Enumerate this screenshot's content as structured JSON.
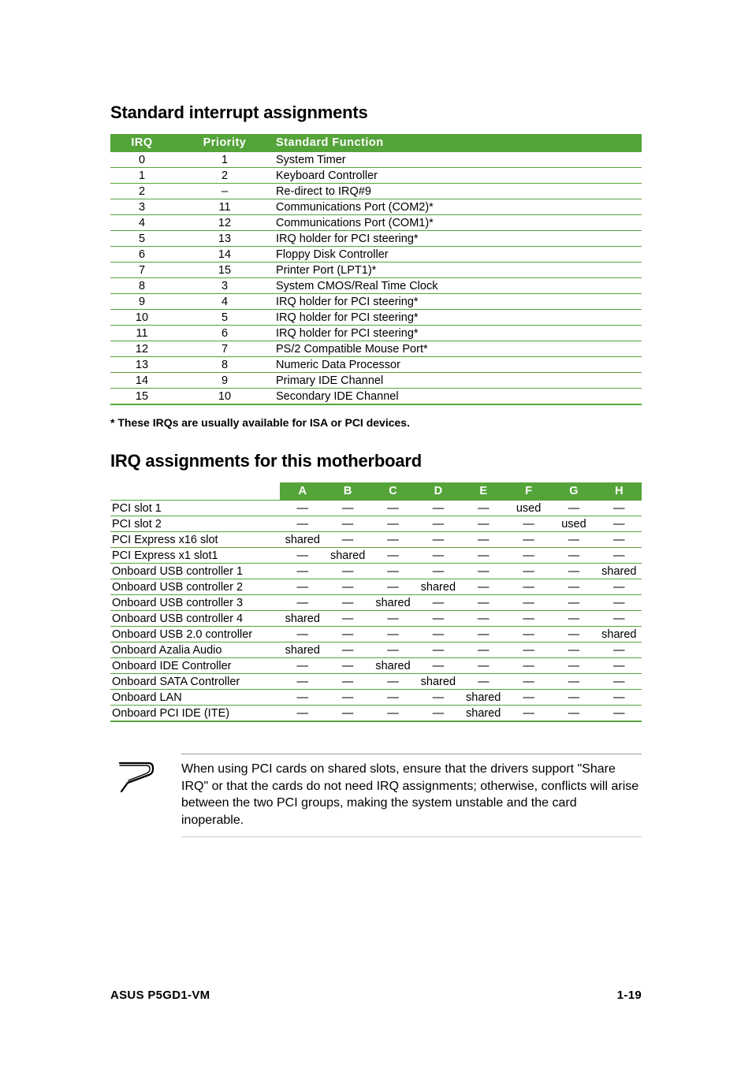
{
  "colors": {
    "header_bg": "#54a43a",
    "header_fg": "#ffffff",
    "border": "#54a43a"
  },
  "section1": {
    "title": "Standard interrupt assignments",
    "headers": {
      "irq": "IRQ",
      "priority": "Priority",
      "func": "Standard Function"
    },
    "rows": [
      {
        "irq": "0",
        "pri": "1",
        "func": "System Timer"
      },
      {
        "irq": "1",
        "pri": "2",
        "func": "Keyboard Controller"
      },
      {
        "irq": "2",
        "pri": "–",
        "func": "Re-direct to IRQ#9"
      },
      {
        "irq": "3",
        "pri": "11",
        "func": "Communications Port (COM2)*"
      },
      {
        "irq": "4",
        "pri": "12",
        "func": "Communications Port (COM1)*"
      },
      {
        "irq": "5",
        "pri": "13",
        "func": "IRQ holder for PCI steering*"
      },
      {
        "irq": "6",
        "pri": "14",
        "func": "Floppy Disk Controller"
      },
      {
        "irq": "7",
        "pri": "15",
        "func": "Printer Port (LPT1)*"
      },
      {
        "irq": "8",
        "pri": "3",
        "func": "System CMOS/Real Time Clock"
      },
      {
        "irq": "9",
        "pri": "4",
        "func": "IRQ holder for PCI steering*"
      },
      {
        "irq": "10",
        "pri": "5",
        "func": "IRQ holder for PCI steering*"
      },
      {
        "irq": "11",
        "pri": "6",
        "func": "IRQ holder for PCI steering*"
      },
      {
        "irq": "12",
        "pri": "7",
        "func": "PS/2 Compatible Mouse Port*"
      },
      {
        "irq": "13",
        "pri": "8",
        "func": "Numeric Data Processor"
      },
      {
        "irq": "14",
        "pri": "9",
        "func": "Primary IDE Channel"
      },
      {
        "irq": "15",
        "pri": "10",
        "func": "Secondary IDE Channel"
      }
    ],
    "footnote": "* These IRQs are usually available for ISA or PCI devices."
  },
  "section2": {
    "title": "IRQ assignments for this motherboard",
    "columns": [
      "A",
      "B",
      "C",
      "D",
      "E",
      "F",
      "G",
      "H"
    ],
    "dash": "—",
    "rows": [
      {
        "label": "PCI slot 1",
        "cells": [
          "—",
          "—",
          "—",
          "—",
          "—",
          "used",
          "—",
          "—"
        ]
      },
      {
        "label": "PCI slot 2",
        "cells": [
          "—",
          "—",
          "—",
          "—",
          "—",
          "—",
          "used",
          "—"
        ]
      },
      {
        "label": "PCI Express x16 slot",
        "cells": [
          "shared",
          "—",
          "—",
          "—",
          "—",
          "—",
          "—",
          "—"
        ]
      },
      {
        "label": "PCI Express x1 slot1",
        "cells": [
          "—",
          "shared",
          "—",
          "—",
          "—",
          "—",
          "—",
          "—"
        ]
      },
      {
        "label": "Onboard USB controller 1",
        "cells": [
          "—",
          "—",
          "—",
          "—",
          "—",
          "—",
          "—",
          "shared"
        ]
      },
      {
        "label": "Onboard USB controller 2",
        "cells": [
          "—",
          "—",
          "—",
          "shared",
          "—",
          "—",
          "—",
          "—"
        ]
      },
      {
        "label": "Onboard USB controller 3",
        "cells": [
          "—",
          "—",
          "shared",
          "—",
          "—",
          "—",
          "—",
          "—"
        ]
      },
      {
        "label": "Onboard USB controller 4",
        "cells": [
          "shared",
          "—",
          "—",
          "—",
          "—",
          "—",
          "—",
          "—"
        ]
      },
      {
        "label": "Onboard USB 2.0 controller",
        "cells": [
          "—",
          "—",
          "—",
          "—",
          "—",
          "—",
          "—",
          "shared"
        ]
      },
      {
        "label": "Onboard Azalia Audio",
        "cells": [
          "shared",
          "—",
          "—",
          "—",
          "—",
          "—",
          "—",
          "—"
        ]
      },
      {
        "label": "Onboard IDE Controller",
        "cells": [
          "—",
          "—",
          "shared",
          "—",
          "—",
          "—",
          "—",
          "—"
        ]
      },
      {
        "label": "Onboard SATA Controller",
        "cells": [
          "—",
          "—",
          "—",
          "shared",
          "—",
          "—",
          "—",
          "—"
        ]
      },
      {
        "label": "Onboard LAN",
        "cells": [
          "—",
          "—",
          "—",
          "—",
          "shared",
          "—",
          "—",
          "—"
        ]
      },
      {
        "label": "Onboard PCI IDE (ITE)",
        "cells": [
          "—",
          "—",
          "—",
          "—",
          "shared",
          "—",
          "—",
          "—"
        ]
      }
    ]
  },
  "callout": {
    "text": "When using PCI cards on shared slots, ensure that the drivers support \"Share IRQ\" or that the cards do not need IRQ assignments; otherwise, conflicts will arise between the two PCI groups, making the system unstable and the card inoperable."
  },
  "footer": {
    "left": "ASUS P5GD1-VM",
    "right": "1-19"
  }
}
